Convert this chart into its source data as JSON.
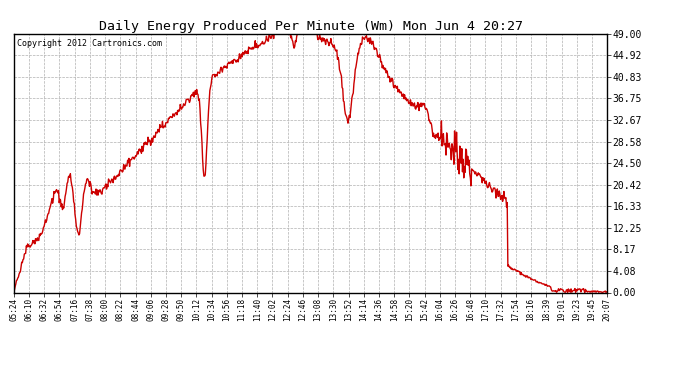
{
  "title": "Daily Energy Produced Per Minute (Wm) Mon Jun 4 20:27",
  "copyright": "Copyright 2012 Cartronics.com",
  "line_color": "#cc0000",
  "bg_color": "#ffffff",
  "grid_color": "#b0b0b0",
  "y_ticks": [
    0.0,
    4.08,
    8.17,
    12.25,
    16.33,
    20.42,
    24.5,
    28.58,
    32.67,
    36.75,
    40.83,
    44.92,
    49.0
  ],
  "y_max": 49.0,
  "x_labels": [
    "05:24",
    "06:10",
    "06:32",
    "06:54",
    "07:16",
    "07:38",
    "08:00",
    "08:22",
    "08:44",
    "09:06",
    "09:28",
    "09:50",
    "10:12",
    "10:34",
    "10:56",
    "11:18",
    "11:40",
    "12:02",
    "12:24",
    "12:46",
    "13:08",
    "13:30",
    "13:52",
    "14:14",
    "14:36",
    "14:58",
    "15:20",
    "15:42",
    "16:04",
    "16:26",
    "16:48",
    "17:10",
    "17:32",
    "17:54",
    "18:16",
    "18:39",
    "19:01",
    "19:23",
    "19:45",
    "20:07"
  ]
}
